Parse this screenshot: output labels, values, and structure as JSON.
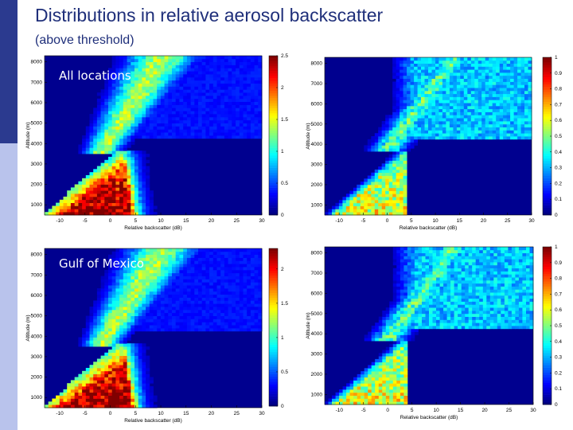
{
  "slide": {
    "title": "Distributions in relative aerosol backscatter",
    "subtitle": "(above threshold)"
  },
  "colors": {
    "accent": "#1f2f7a",
    "side_dark": "#2b3a8f",
    "side_light": "#b9c3ec",
    "plot_background": "#00008f"
  },
  "chart_data": [
    {
      "type": "heatmap",
      "label": "All locations",
      "xlabel": "Relative backscatter (dB)",
      "ylabel": "Altitude (m)",
      "xticks": [
        -10,
        -5,
        0,
        5,
        10,
        15,
        20,
        25,
        30
      ],
      "yticks": [
        1000,
        2000,
        3000,
        4000,
        5000,
        6000,
        7000,
        8000
      ],
      "xlim": [
        -13,
        30
      ],
      "ylim": [
        500,
        8300
      ],
      "colorbar": {
        "ticks": [
          "0",
          "0.5",
          "1",
          "1.5",
          "2",
          "2.5"
        ],
        "range": [
          0,
          2.5
        ]
      }
    },
    {
      "type": "heatmap",
      "label": "",
      "xlabel": "Relative backscatter (dB)",
      "ylabel": "Altitude (m)",
      "xticks": [
        -10,
        -5,
        0,
        5,
        10,
        15,
        20,
        25,
        30
      ],
      "yticks": [
        1000,
        2000,
        3000,
        4000,
        5000,
        6000,
        7000,
        8000
      ],
      "xlim": [
        -13,
        30
      ],
      "ylim": [
        500,
        8300
      ],
      "colorbar": {
        "ticks": [
          "0",
          "0.1",
          "0.2",
          "0.3",
          "0.4",
          "0.5",
          "0.6",
          "0.7",
          "0.8",
          "0.9",
          "1"
        ],
        "range": [
          0,
          1
        ]
      }
    },
    {
      "type": "heatmap",
      "label": "Gulf of Mexico",
      "xlabel": "Relative backscatter (dB)",
      "ylabel": "Altitude (m)",
      "xticks": [
        -10,
        -5,
        0,
        5,
        10,
        15,
        20,
        25,
        30
      ],
      "yticks": [
        1000,
        2000,
        3000,
        4000,
        5000,
        6000,
        7000,
        8000
      ],
      "xlim": [
        -13,
        30
      ],
      "ylim": [
        500,
        8300
      ],
      "colorbar": {
        "ticks": [
          "0",
          "0.5",
          "1",
          "1.5",
          "2"
        ],
        "range": [
          0,
          2.3
        ]
      }
    },
    {
      "type": "heatmap",
      "label": "",
      "xlabel": "Relative backscatter (dB)",
      "ylabel": "Altitude (m)",
      "xticks": [
        -10,
        -5,
        0,
        5,
        10,
        15,
        20,
        25,
        30
      ],
      "yticks": [
        1000,
        2000,
        3000,
        4000,
        5000,
        6000,
        7000,
        8000
      ],
      "xlim": [
        -13,
        30
      ],
      "ylim": [
        500,
        8300
      ],
      "colorbar": {
        "ticks": [
          "0",
          "0.1",
          "0.2",
          "0.3",
          "0.4",
          "0.5",
          "0.6",
          "0.7",
          "0.8",
          "0.9",
          "1"
        ],
        "range": [
          0,
          1
        ]
      }
    }
  ]
}
